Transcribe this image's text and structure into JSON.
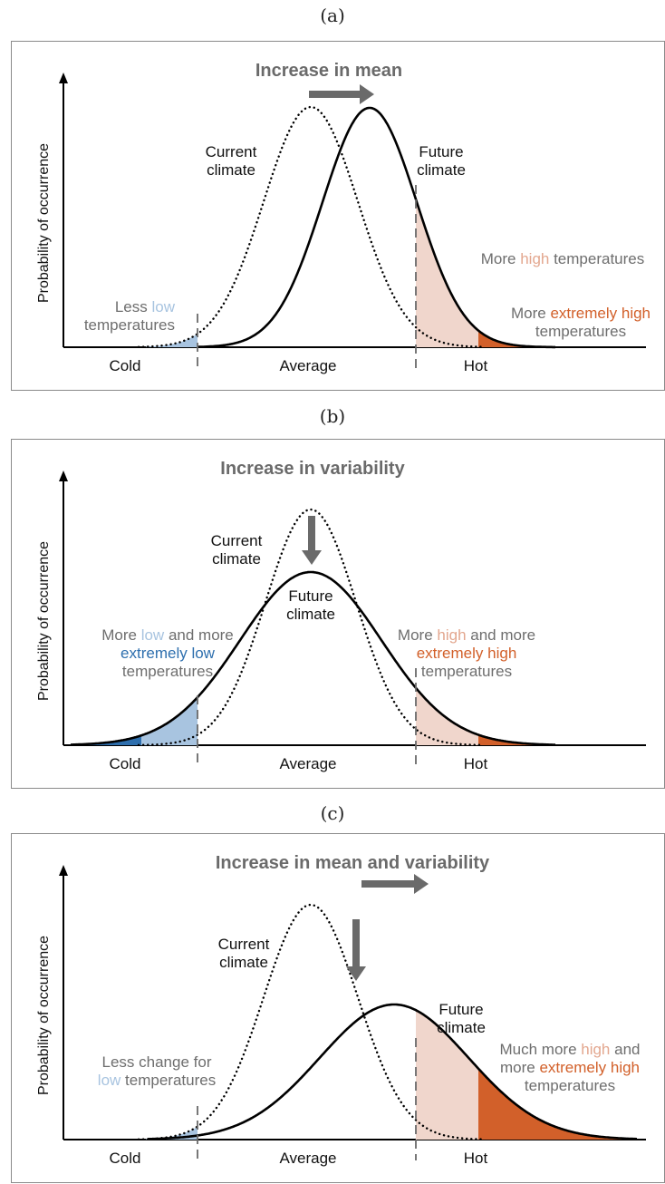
{
  "colors": {
    "light_blue": "#a8c4e0",
    "dark_blue": "#2e6fae",
    "light_orange": "#f0d6cc",
    "dark_orange": "#d2602a",
    "text_grey": "#6e6e6e",
    "arrow_grey": "#6a6a6a"
  },
  "common": {
    "y_axis_label": "Probability of occurrence",
    "x_cold": "Cold",
    "x_average": "Average",
    "x_hot": "Hot"
  },
  "panels": [
    {
      "label": "(a)",
      "title": "Increase in mean",
      "current": [
        "Current",
        "climate"
      ],
      "future": [
        "Future",
        "climate"
      ],
      "left_note": [
        [
          {
            "t": "Less ",
            "c": "grey"
          },
          {
            "t": "low",
            "c": "light_blue"
          }
        ],
        [
          {
            "t": "temperatures",
            "c": "grey"
          }
        ]
      ],
      "right_note": [
        [
          {
            "t": "More ",
            "c": "grey"
          },
          {
            "t": "high",
            "c": "light_orange_text"
          },
          {
            "t": " temperatures",
            "c": "grey"
          }
        ]
      ],
      "right_note2": [
        [
          {
            "t": "More ",
            "c": "grey"
          },
          {
            "t": "extremely high",
            "c": "dark_orange"
          }
        ],
        [
          {
            "t": "temperatures",
            "c": "grey"
          }
        ]
      ]
    },
    {
      "label": "(b)",
      "title": "Increase in variability",
      "current": [
        "Current",
        "climate"
      ],
      "future": [
        "Future",
        "climate"
      ],
      "left_note": [
        [
          {
            "t": "More ",
            "c": "grey"
          },
          {
            "t": "low",
            "c": "light_blue"
          },
          {
            "t": " and more",
            "c": "grey"
          }
        ],
        [
          {
            "t": "extremely low",
            "c": "dark_blue"
          }
        ],
        [
          {
            "t": "temperatures",
            "c": "grey"
          }
        ]
      ],
      "right_note": [
        [
          {
            "t": "More ",
            "c": "grey"
          },
          {
            "t": "high",
            "c": "light_orange_text"
          },
          {
            "t": " and more",
            "c": "grey"
          }
        ],
        [
          {
            "t": "extremely high",
            "c": "dark_orange"
          }
        ],
        [
          {
            "t": "temperatures",
            "c": "grey"
          }
        ]
      ]
    },
    {
      "label": "(c)",
      "title": "Increase in mean and variability",
      "current": [
        "Current",
        "climate"
      ],
      "future": [
        "Future",
        "climate"
      ],
      "left_note": [
        [
          {
            "t": "Less change for",
            "c": "grey"
          }
        ],
        [
          {
            "t": "low",
            "c": "light_blue"
          },
          {
            "t": " temperatures",
            "c": "grey"
          }
        ]
      ],
      "right_note": [
        [
          {
            "t": "Much more ",
            "c": "grey"
          },
          {
            "t": "high",
            "c": "light_orange_text"
          },
          {
            "t": " and",
            "c": "grey"
          }
        ],
        [
          {
            "t": "more ",
            "c": "grey"
          },
          {
            "t": "extremely high",
            "c": "dark_orange"
          }
        ],
        [
          {
            "t": "temperatures",
            "c": "grey"
          }
        ]
      ]
    }
  ]
}
